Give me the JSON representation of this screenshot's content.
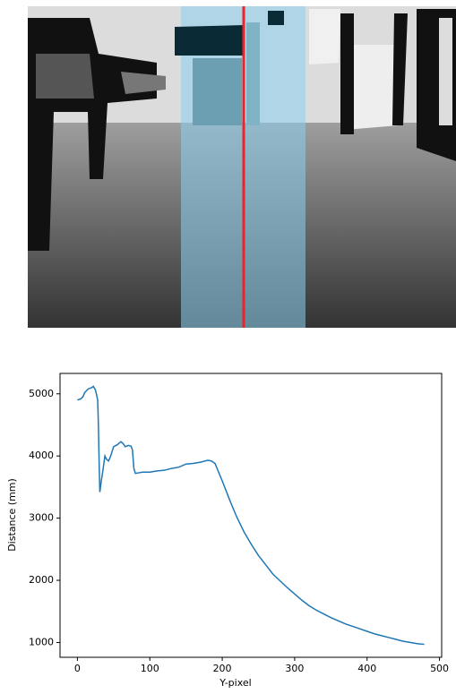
{
  "chart_data": {
    "type": "line",
    "xlabel": "Y-pixel",
    "ylabel": "Distance (mm)",
    "x": [
      0,
      5,
      8,
      10,
      15,
      20,
      22,
      25,
      28,
      29,
      30,
      31,
      33,
      35,
      38,
      40,
      43,
      46,
      50,
      55,
      60,
      63,
      66,
      70,
      74,
      76,
      78,
      80,
      85,
      90,
      100,
      110,
      120,
      130,
      140,
      150,
      160,
      170,
      180,
      185,
      190,
      200,
      210,
      220,
      230,
      240,
      250,
      260,
      270,
      280,
      290,
      300,
      310,
      320,
      330,
      340,
      350,
      360,
      370,
      380,
      390,
      400,
      410,
      420,
      430,
      440,
      450,
      460,
      470,
      479
    ],
    "values": [
      4900,
      4920,
      4960,
      5020,
      5080,
      5100,
      5120,
      5060,
      4900,
      4500,
      3900,
      3420,
      3600,
      3750,
      4000,
      3950,
      3920,
      4000,
      4150,
      4180,
      4230,
      4200,
      4150,
      4170,
      4160,
      4100,
      3800,
      3720,
      3730,
      3740,
      3740,
      3760,
      3770,
      3800,
      3820,
      3870,
      3880,
      3900,
      3930,
      3920,
      3880,
      3600,
      3300,
      3020,
      2780,
      2580,
      2400,
      2250,
      2100,
      1990,
      1880,
      1780,
      1680,
      1590,
      1520,
      1460,
      1400,
      1350,
      1300,
      1260,
      1220,
      1180,
      1140,
      1110,
      1080,
      1050,
      1020,
      1000,
      980,
      970
    ],
    "color": "#1f77b4",
    "xlim": [
      -24,
      503
    ],
    "ylim": [
      762,
      5328
    ],
    "xticks": [
      0,
      100,
      200,
      300,
      400,
      500
    ],
    "yticks": [
      1000,
      2000,
      3000,
      4000,
      5000
    ]
  }
}
